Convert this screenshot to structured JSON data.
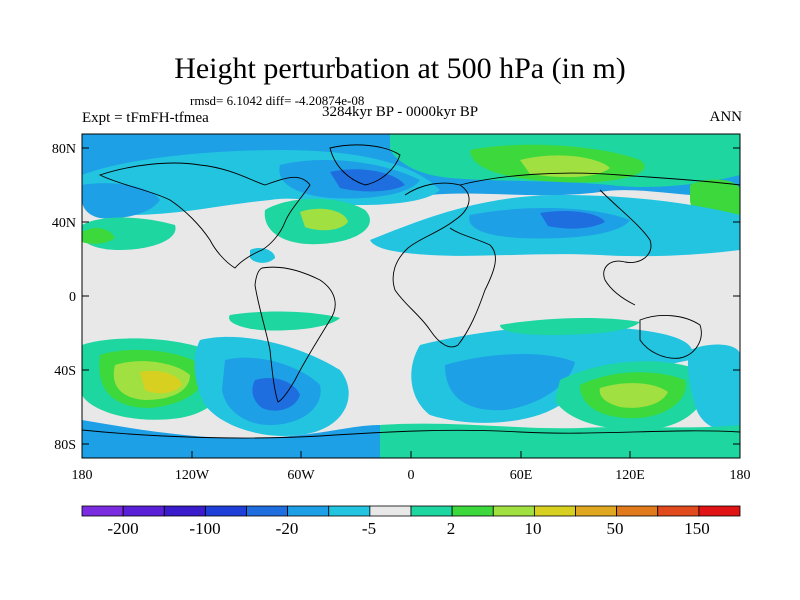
{
  "title": "Height perturbation at 500 hPa (in m)",
  "stats": "rmsd= 6.1042 diff= -4.20874e-08",
  "experiment": "Expt = tFmFH-tfmea",
  "period": "3284kyr BP - 0000kyr BP",
  "season": "ANN",
  "latitude_labels": [
    "80N",
    "40N",
    "0",
    "40S",
    "80S"
  ],
  "longitude_labels": [
    "180",
    "120W",
    "60W",
    "0",
    "60E",
    "120E",
    "180"
  ],
  "colorbar": {
    "colors": [
      "#7b2ce0",
      "#5a20d8",
      "#3a1ccc",
      "#1e3fd8",
      "#1e6ee0",
      "#1ea0e6",
      "#22c4e0",
      "#e8e8e8",
      "#1ed6a0",
      "#3cd83c",
      "#a0e040",
      "#d8d020",
      "#e0a820",
      "#e07a1c",
      "#e04a1c",
      "#e01414"
    ],
    "labels": [
      "-200",
      "-100",
      "-20",
      "-5",
      "2",
      "10",
      "50",
      "150"
    ]
  },
  "blobs": [
    {
      "lon": -150,
      "lat": -45,
      "level": 2,
      "name": "south-pacific-positive-anomaly"
    },
    {
      "lon": 110,
      "lat": -48,
      "level": 2,
      "name": "south-indian-positive-anomaly"
    },
    {
      "lon": -75,
      "lat": -55,
      "level": -2,
      "name": "south-america-negative-anomaly"
    },
    {
      "lon": 40,
      "lat": -42,
      "level": -1,
      "name": "south-atlantic-negative-anomaly"
    },
    {
      "lon": -25,
      "lat": 68,
      "level": -2,
      "name": "north-atlantic-negative-anomaly"
    },
    {
      "lon": -60,
      "lat": 45,
      "level": 1,
      "name": "north-america-positive-anomaly"
    },
    {
      "lon": 60,
      "lat": 45,
      "level": -1,
      "name": "eurasia-negative-anomaly"
    },
    {
      "lon": 100,
      "lat": 72,
      "level": 1,
      "name": "siberia-positive-anomaly"
    }
  ]
}
